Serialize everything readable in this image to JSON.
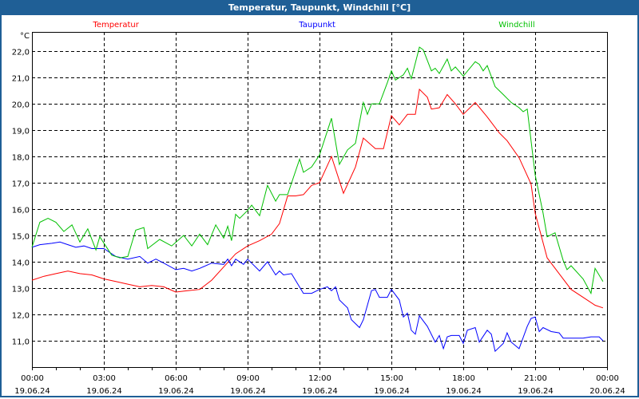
{
  "window": {
    "title": "Temperatur, Taupunkt, Windchill [°C]"
  },
  "chart_data": {
    "type": "line",
    "title": "Temperatur, Taupunkt, Windchill [°C]",
    "ylabel": "°C",
    "xlabel": "",
    "xlim_hours": [
      0,
      24
    ],
    "ylim": [
      10.0,
      22.73
    ],
    "grid": true,
    "legend_placement": "top",
    "y_ticks": [
      {
        "value": 11,
        "label": "11,0"
      },
      {
        "value": 12,
        "label": "12,0"
      },
      {
        "value": 13,
        "label": "13,0"
      },
      {
        "value": 14,
        "label": "14,0"
      },
      {
        "value": 15,
        "label": "15,0"
      },
      {
        "value": 16,
        "label": "16,0"
      },
      {
        "value": 17,
        "label": "17,0"
      },
      {
        "value": 18,
        "label": "18,0"
      },
      {
        "value": 19,
        "label": "19,0"
      },
      {
        "value": 20,
        "label": "20,0"
      },
      {
        "value": 21,
        "label": "21,0"
      },
      {
        "value": 22,
        "label": "22,0"
      }
    ],
    "x_ticks": [
      {
        "hour": 0,
        "time": "00:00",
        "date": "19.06.24"
      },
      {
        "hour": 3,
        "time": "03:00",
        "date": "19.06.24"
      },
      {
        "hour": 6,
        "time": "06:00",
        "date": "19.06.24"
      },
      {
        "hour": 9,
        "time": "09:00",
        "date": "19.06.24"
      },
      {
        "hour": 12,
        "time": "12:00",
        "date": "19.06.24"
      },
      {
        "hour": 15,
        "time": "15:00",
        "date": "19.06.24"
      },
      {
        "hour": 18,
        "time": "18:00",
        "date": "19.06.24"
      },
      {
        "hour": 21,
        "time": "21:00",
        "date": "19.06.24"
      },
      {
        "hour": 24,
        "time": "00:00",
        "date": "20.06.24"
      }
    ],
    "series": [
      {
        "name": "Temperatur",
        "color": "#ff0000",
        "legend_pos": 0.146,
        "points": [
          [
            0,
            13.3
          ],
          [
            0.5,
            13.45
          ],
          [
            1,
            13.55
          ],
          [
            1.5,
            13.65
          ],
          [
            2,
            13.55
          ],
          [
            2.5,
            13.5
          ],
          [
            3,
            13.35
          ],
          [
            3.5,
            13.25
          ],
          [
            4,
            13.15
          ],
          [
            4.5,
            13.05
          ],
          [
            5,
            13.1
          ],
          [
            5.5,
            13.05
          ],
          [
            6,
            12.85
          ],
          [
            6.5,
            12.9
          ],
          [
            7,
            12.95
          ],
          [
            7.5,
            13.3
          ],
          [
            8,
            13.8
          ],
          [
            8.5,
            14.3
          ],
          [
            9,
            14.6
          ],
          [
            9.5,
            14.8
          ],
          [
            10,
            15.05
          ],
          [
            10.33,
            15.45
          ],
          [
            10.67,
            16.5
          ],
          [
            11,
            16.5
          ],
          [
            11.33,
            16.55
          ],
          [
            11.67,
            16.9
          ],
          [
            12,
            17.0
          ],
          [
            12.5,
            18.0
          ],
          [
            13,
            16.6
          ],
          [
            13.5,
            17.6
          ],
          [
            13.83,
            18.7
          ],
          [
            14.33,
            18.3
          ],
          [
            14.67,
            18.3
          ],
          [
            15,
            19.55
          ],
          [
            15.33,
            19.2
          ],
          [
            15.67,
            19.6
          ],
          [
            16,
            19.6
          ],
          [
            16.17,
            20.55
          ],
          [
            16.5,
            20.25
          ],
          [
            16.67,
            19.8
          ],
          [
            17,
            19.85
          ],
          [
            17.33,
            20.35
          ],
          [
            17.67,
            20.0
          ],
          [
            18,
            19.6
          ],
          [
            18.5,
            20.05
          ],
          [
            19,
            19.5
          ],
          [
            19.5,
            18.9
          ],
          [
            19.83,
            18.6
          ],
          [
            20.33,
            17.95
          ],
          [
            20.83,
            16.95
          ],
          [
            21,
            15.85
          ],
          [
            21.5,
            14.15
          ],
          [
            22,
            13.55
          ],
          [
            22.5,
            12.95
          ],
          [
            23,
            12.65
          ],
          [
            23.5,
            12.35
          ],
          [
            23.83,
            12.25
          ]
        ]
      },
      {
        "name": "Taupunkt",
        "color": "#0000ff",
        "legend_pos": 0.496,
        "points": [
          [
            0,
            14.55
          ],
          [
            0.33,
            14.65
          ],
          [
            0.83,
            14.7
          ],
          [
            1.17,
            14.75
          ],
          [
            1.5,
            14.65
          ],
          [
            1.83,
            14.55
          ],
          [
            2.17,
            14.6
          ],
          [
            2.5,
            14.5
          ],
          [
            3,
            14.5
          ],
          [
            3.5,
            14.2
          ],
          [
            4,
            14.1
          ],
          [
            4.5,
            14.2
          ],
          [
            4.83,
            13.95
          ],
          [
            5.17,
            14.1
          ],
          [
            5.5,
            13.95
          ],
          [
            6,
            13.7
          ],
          [
            6.33,
            13.75
          ],
          [
            6.67,
            13.65
          ],
          [
            7,
            13.75
          ],
          [
            7.5,
            13.95
          ],
          [
            8,
            13.9
          ],
          [
            8.17,
            14.1
          ],
          [
            8.33,
            13.85
          ],
          [
            8.5,
            14.1
          ],
          [
            8.83,
            13.9
          ],
          [
            9,
            14.1
          ],
          [
            9.5,
            13.65
          ],
          [
            9.83,
            14.0
          ],
          [
            10.17,
            13.5
          ],
          [
            10.33,
            13.65
          ],
          [
            10.5,
            13.5
          ],
          [
            10.83,
            13.55
          ],
          [
            11.33,
            12.8
          ],
          [
            11.67,
            12.8
          ],
          [
            12,
            12.95
          ],
          [
            12.33,
            13.05
          ],
          [
            12.5,
            12.9
          ],
          [
            12.67,
            13.05
          ],
          [
            12.83,
            12.55
          ],
          [
            13.17,
            12.25
          ],
          [
            13.33,
            11.8
          ],
          [
            13.67,
            11.5
          ],
          [
            13.83,
            11.8
          ],
          [
            14.17,
            12.9
          ],
          [
            14.33,
            12.95
          ],
          [
            14.5,
            12.65
          ],
          [
            14.83,
            12.65
          ],
          [
            15,
            12.95
          ],
          [
            15.33,
            12.55
          ],
          [
            15.5,
            11.9
          ],
          [
            15.67,
            12.05
          ],
          [
            15.83,
            11.4
          ],
          [
            16,
            11.25
          ],
          [
            16.17,
            11.95
          ],
          [
            16.5,
            11.55
          ],
          [
            16.83,
            10.95
          ],
          [
            17,
            11.2
          ],
          [
            17.17,
            10.7
          ],
          [
            17.33,
            11.15
          ],
          [
            17.5,
            11.2
          ],
          [
            17.83,
            11.2
          ],
          [
            18,
            10.9
          ],
          [
            18.17,
            11.4
          ],
          [
            18.5,
            11.5
          ],
          [
            18.67,
            10.95
          ],
          [
            19,
            11.4
          ],
          [
            19.17,
            11.25
          ],
          [
            19.33,
            10.6
          ],
          [
            19.67,
            10.9
          ],
          [
            19.83,
            11.3
          ],
          [
            20,
            10.95
          ],
          [
            20.33,
            10.7
          ],
          [
            20.67,
            11.55
          ],
          [
            20.83,
            11.85
          ],
          [
            21,
            11.9
          ],
          [
            21.17,
            11.35
          ],
          [
            21.33,
            11.5
          ],
          [
            21.67,
            11.35
          ],
          [
            22,
            11.3
          ],
          [
            22.17,
            11.1
          ],
          [
            22.67,
            11.1
          ],
          [
            23,
            11.1
          ],
          [
            23.33,
            11.15
          ],
          [
            23.67,
            11.15
          ],
          [
            23.83,
            11.0
          ]
        ]
      },
      {
        "name": "Windchill",
        "color": "#00c000",
        "legend_pos": 0.843,
        "points": [
          [
            0,
            14.55
          ],
          [
            0.33,
            15.5
          ],
          [
            0.67,
            15.65
          ],
          [
            1,
            15.5
          ],
          [
            1.33,
            15.15
          ],
          [
            1.67,
            15.4
          ],
          [
            2,
            14.75
          ],
          [
            2.33,
            15.25
          ],
          [
            2.67,
            14.45
          ],
          [
            2.83,
            14.95
          ],
          [
            3.33,
            14.25
          ],
          [
            3.67,
            14.15
          ],
          [
            4,
            14.2
          ],
          [
            4.33,
            15.2
          ],
          [
            4.67,
            15.3
          ],
          [
            4.83,
            14.5
          ],
          [
            5.33,
            14.85
          ],
          [
            5.83,
            14.6
          ],
          [
            6.33,
            15.0
          ],
          [
            6.67,
            14.6
          ],
          [
            7,
            15.05
          ],
          [
            7.33,
            14.65
          ],
          [
            7.67,
            15.4
          ],
          [
            8,
            14.9
          ],
          [
            8.17,
            15.35
          ],
          [
            8.33,
            14.8
          ],
          [
            8.5,
            15.8
          ],
          [
            8.67,
            15.65
          ],
          [
            9,
            15.95
          ],
          [
            9.17,
            16.15
          ],
          [
            9.5,
            15.75
          ],
          [
            9.83,
            16.9
          ],
          [
            10.17,
            16.3
          ],
          [
            10.33,
            16.55
          ],
          [
            10.67,
            16.55
          ],
          [
            11.17,
            17.9
          ],
          [
            11.33,
            17.4
          ],
          [
            11.67,
            17.6
          ],
          [
            12,
            18.05
          ],
          [
            12.5,
            19.45
          ],
          [
            12.83,
            17.7
          ],
          [
            13.17,
            18.25
          ],
          [
            13.5,
            18.5
          ],
          [
            13.83,
            20.05
          ],
          [
            14,
            19.6
          ],
          [
            14.17,
            20.0
          ],
          [
            14.5,
            20.0
          ],
          [
            14.83,
            20.8
          ],
          [
            15,
            21.25
          ],
          [
            15.17,
            20.9
          ],
          [
            15.5,
            21.1
          ],
          [
            15.67,
            21.35
          ],
          [
            15.83,
            20.95
          ],
          [
            16.17,
            22.15
          ],
          [
            16.33,
            22.05
          ],
          [
            16.67,
            21.25
          ],
          [
            16.83,
            21.35
          ],
          [
            17,
            21.15
          ],
          [
            17.33,
            21.7
          ],
          [
            17.5,
            21.25
          ],
          [
            17.67,
            21.4
          ],
          [
            18,
            21.05
          ],
          [
            18.5,
            21.6
          ],
          [
            18.67,
            21.5
          ],
          [
            18.83,
            21.25
          ],
          [
            19,
            21.45
          ],
          [
            19.33,
            20.65
          ],
          [
            19.67,
            20.35
          ],
          [
            20,
            20.05
          ],
          [
            20.33,
            19.85
          ],
          [
            20.5,
            19.7
          ],
          [
            20.67,
            19.8
          ],
          [
            21,
            17.3
          ],
          [
            21.33,
            15.85
          ],
          [
            21.5,
            14.95
          ],
          [
            21.83,
            15.1
          ],
          [
            22.17,
            14.05
          ],
          [
            22.33,
            13.7
          ],
          [
            22.5,
            13.85
          ],
          [
            23,
            13.35
          ],
          [
            23.33,
            12.8
          ],
          [
            23.5,
            13.75
          ],
          [
            23.83,
            13.25
          ]
        ]
      }
    ]
  }
}
